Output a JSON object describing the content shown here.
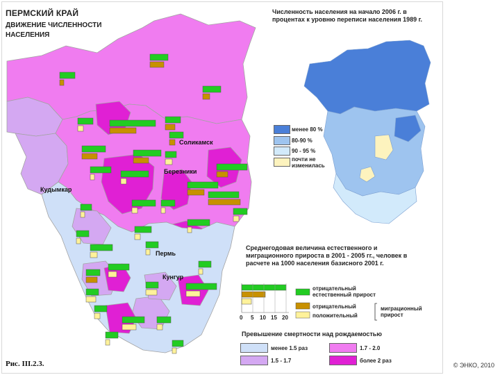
{
  "map": {
    "title": "ПЕРМСКИЙ КРАЙ",
    "subtitle": "ДВИЖЕНИЕ ЧИСЛЕННОСТИ НАСЕЛЕНИЯ",
    "cities": [
      "Соликамск",
      "Березники",
      "Кудымкар",
      "Пермь",
      "Кунгур"
    ]
  },
  "inset": {
    "title": "Численность населения на начало 2006 г. в процентах к уровню переписи населения 1989 г.",
    "legend": [
      {
        "label": "менее 80 %",
        "color": "#4a7fd8"
      },
      {
        "label": "80-90 %",
        "color": "#9ec4ef"
      },
      {
        "label": "90 - 95 %",
        "color": "#d2eafb"
      },
      {
        "label": "почти не изменилась",
        "color": "#fdf3be"
      }
    ]
  },
  "growth": {
    "title": "Среднегодовая величина естественного и миграционного прироста в 2001 - 2005 гг., человек в расчете на 1000 населения базисного 2001 г.",
    "scale_ticks": [
      "0",
      "5",
      "10",
      "15",
      "20"
    ],
    "natural_label": "естественный прирост",
    "migration_label": "миграционный прирост",
    "items": [
      {
        "label": "отрицательный",
        "color": "#22cc22"
      },
      {
        "label": "отрицательный",
        "color": "#c89000"
      },
      {
        "label": "положительный",
        "color": "#fff29a"
      }
    ]
  },
  "mortality": {
    "title": "Превышение смертности над рождаемостью",
    "legend": [
      {
        "label": "менее 1.5 раз",
        "color": "#cfe0f8"
      },
      {
        "label": "1.5 - 1.7",
        "color": "#d4a8f2"
      },
      {
        "label": "1.7 - 2.0",
        "color": "#f07cf0"
      },
      {
        "label": "более 2 раз",
        "color": "#e020d4"
      }
    ]
  },
  "footer": {
    "caption": "Рис. III.2.3.",
    "copyright": "© ЭНКО, 2010"
  }
}
